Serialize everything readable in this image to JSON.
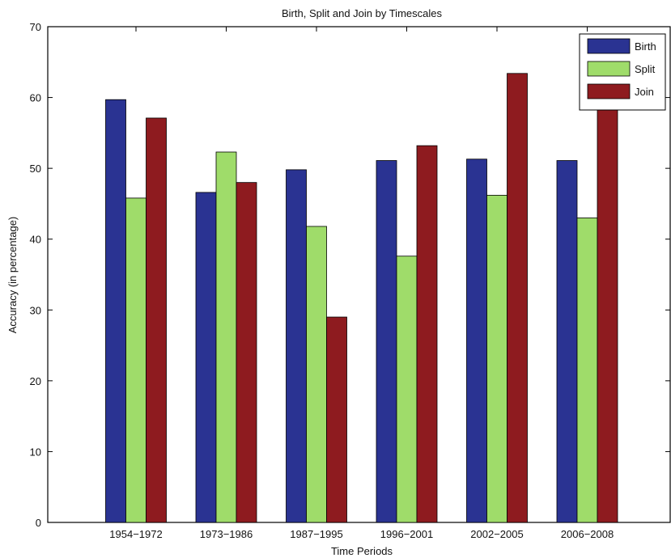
{
  "chart_data": {
    "type": "bar",
    "title": "Birth, Split and Join by Timescales",
    "xlabel": "Time Periods",
    "ylabel": "Accuracy (in percentage)",
    "categories": [
      "1954−1972",
      "1973−1986",
      "1987−1995",
      "1996−2001",
      "2002−2005",
      "2006−2008"
    ],
    "ylim": [
      0,
      70
    ],
    "yticks": [
      0,
      10,
      20,
      30,
      40,
      50,
      60,
      70
    ],
    "series": [
      {
        "name": "Birth",
        "values": [
          59.7,
          46.6,
          49.8,
          51.1,
          51.3,
          51.1
        ]
      },
      {
        "name": "Split",
        "values": [
          45.8,
          52.3,
          41.8,
          37.6,
          46.2,
          43.0
        ]
      },
      {
        "name": "Join",
        "values": [
          57.1,
          48.0,
          29.0,
          53.2,
          63.4,
          60.0
        ]
      }
    ],
    "colors": {
      "Birth": "#2a3392",
      "Split": "#9fdc6a",
      "Join": "#8e1b1f"
    },
    "legend_position": "top-right",
    "grid": false
  }
}
